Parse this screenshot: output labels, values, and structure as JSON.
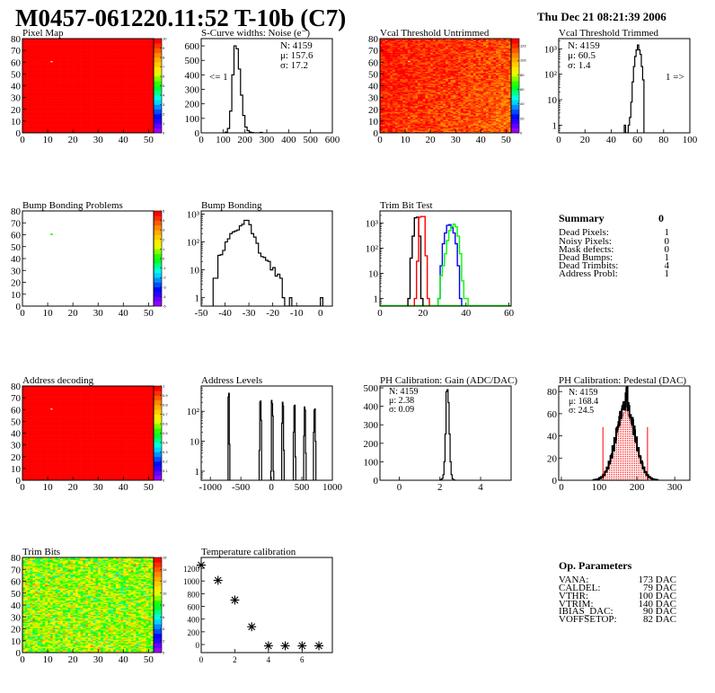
{
  "header": {
    "title": "M0457-061220.11:52 T-10b (C7)",
    "date": "Thu Dec 21 08:21:39 2006"
  },
  "summary": {
    "title": "Summary",
    "total": "0",
    "rows": [
      {
        "label": "Dead Pixels:",
        "value": "1"
      },
      {
        "label": "Noisy Pixels:",
        "value": "0"
      },
      {
        "label": "Mask defects:",
        "value": "0"
      },
      {
        "label": "Dead Bumps:",
        "value": "1"
      },
      {
        "label": "Dead Trimbits:",
        "value": "4"
      },
      {
        "label": "Address Probl:",
        "value": "1"
      }
    ]
  },
  "op_parameters": {
    "title": "Op. Parameters",
    "rows": [
      {
        "label": "VANA:",
        "value": "173 DAC"
      },
      {
        "label": "CALDEL:",
        "value": "79 DAC"
      },
      {
        "label": "VTHR:",
        "value": "100 DAC"
      },
      {
        "label": "VTRIM:",
        "value": "140 DAC"
      },
      {
        "label": "IBIAS_DAC:",
        "value": "90 DAC"
      },
      {
        "label": "VOFFSETOP:",
        "value": "82 DAC"
      }
    ]
  },
  "colors": {
    "histogram": "#000000",
    "trim_series": [
      "#000000",
      "#ff0000",
      "#0000ff",
      "#00ff00"
    ],
    "fit": "#ff0000"
  },
  "chart_data": [
    {
      "id": "pixel-map",
      "type": "heatmap",
      "title": "Pixel Map",
      "xlim": [
        0,
        52
      ],
      "ylim": [
        0,
        80
      ],
      "xticks": [
        0,
        10,
        20,
        30,
        40,
        50
      ],
      "yticks": [
        0,
        10,
        20,
        30,
        40,
        50,
        60,
        70,
        80
      ],
      "zlim": [
        0,
        10
      ],
      "zticks": [
        0,
        1,
        2,
        3,
        4,
        5,
        6,
        7,
        8,
        9,
        10
      ],
      "fill_value": 10,
      "missing_cells": [
        [
          11,
          60
        ]
      ]
    },
    {
      "id": "noise",
      "type": "bar",
      "title": "S-Curve widths: Noise (e⁻)",
      "xlim": [
        0,
        600
      ],
      "ylim": [
        0,
        650
      ],
      "xticks": [
        0,
        100,
        200,
        300,
        400,
        500,
        600
      ],
      "yticks": [
        0,
        100,
        200,
        300,
        400,
        500,
        600
      ],
      "x0": 100,
      "bin_width": 10,
      "counts": [
        0,
        5,
        30,
        150,
        400,
        600,
        580,
        440,
        260,
        120,
        40,
        15,
        5,
        2,
        0,
        0,
        0,
        3
      ],
      "stats": [
        "N: 4159",
        "μ: 157.6",
        "σ: 17.2"
      ],
      "annotation": "<= 1"
    },
    {
      "id": "vcal-untrimmed",
      "type": "heatmap",
      "title": "Vcal Threshold Untrimmed",
      "xlim": [
        0,
        52
      ],
      "ylim": [
        0,
        80
      ],
      "xticks": [
        0,
        10,
        20,
        30,
        40,
        50
      ],
      "yticks": [
        0,
        10,
        20,
        30,
        40,
        50,
        60,
        70,
        80
      ],
      "zlim": [
        0,
        130
      ],
      "zticks": [
        0,
        20,
        40,
        60,
        80,
        100,
        120
      ],
      "missing_cells": [
        [
          11,
          60
        ]
      ]
    },
    {
      "id": "vcal-trimmed",
      "type": "bar",
      "title": "Vcal Threshold Trimmed",
      "log_y": true,
      "xlim": [
        0,
        100
      ],
      "ylim": [
        0.5,
        2500
      ],
      "xticks": [
        0,
        20,
        40,
        60,
        80,
        100
      ],
      "yticks": [
        1,
        10,
        100,
        1000
      ],
      "ytick_labels": [
        "1",
        "10",
        "10²",
        "10³"
      ],
      "x0": 50,
      "bin_width": 1,
      "counts": [
        1,
        0,
        0,
        1,
        2,
        8,
        50,
        200,
        500,
        900,
        1400,
        900,
        600,
        200,
        60
      ],
      "stats": [
        "N: 4159",
        "μ: 60.5",
        "σ:  1.4"
      ],
      "annotation": "1 =>"
    },
    {
      "id": "bump-map",
      "type": "heatmap",
      "title": "Bump Bonding Problems",
      "xlim": [
        0,
        52
      ],
      "ylim": [
        0,
        80
      ],
      "xticks": [
        0,
        10,
        20,
        30,
        40,
        50
      ],
      "yticks": [
        0,
        10,
        20,
        30,
        40,
        50,
        60,
        70,
        80
      ],
      "zlim": [
        -5,
        5
      ],
      "zticks": [
        -5,
        -4,
        -3,
        -2,
        -1,
        0,
        1,
        2,
        3,
        4,
        5
      ],
      "cells": [
        [
          11,
          60,
          0
        ]
      ]
    },
    {
      "id": "bump-bonding",
      "type": "bar",
      "title": "Bump Bonding",
      "log_y": true,
      "xlim": [
        -50,
        5
      ],
      "ylim": [
        0.5,
        1300
      ],
      "xticks": [
        -50,
        -40,
        -30,
        -20,
        -10,
        0
      ],
      "yticks": [
        1,
        10,
        100,
        1000
      ],
      "ytick_labels": [
        "1",
        "10",
        "10²",
        "10³"
      ],
      "x0": -45,
      "bin_width": 1,
      "counts": [
        5,
        5,
        33,
        35,
        50,
        100,
        130,
        200,
        230,
        250,
        270,
        380,
        430,
        600,
        600,
        420,
        200,
        150,
        90,
        40,
        30,
        28,
        22,
        20,
        10,
        12,
        6,
        7,
        5,
        1,
        0,
        0,
        1,
        0,
        0,
        0,
        0,
        0,
        0,
        0,
        0,
        0,
        0,
        0,
        0,
        1
      ]
    },
    {
      "id": "trim-bit-test",
      "type": "bar",
      "title": "Trim Bit Test",
      "log_y": true,
      "xlim": [
        0,
        61
      ],
      "ylim": [
        0.5,
        3000
      ],
      "xticks": [
        0,
        20,
        40,
        60
      ],
      "yticks": [
        1,
        10,
        100,
        1000
      ],
      "ytick_labels": [
        "1",
        "10",
        "10²",
        "10³"
      ],
      "series": [
        {
          "x0": 13,
          "bin_width": 1,
          "counts": [
            1,
            40,
            300,
            1600,
            1700,
            300,
            1
          ]
        },
        {
          "x0": 16,
          "bin_width": 1,
          "counts": [
            1,
            30,
            1700,
            1800,
            1800,
            50,
            1
          ]
        },
        {
          "x0": 27,
          "bin_width": 1,
          "counts": [
            1,
            20,
            150,
            400,
            800,
            850,
            650,
            400,
            150,
            20,
            1
          ]
        },
        {
          "x0": 27,
          "bin_width": 1,
          "counts": [
            1,
            8,
            20,
            60,
            200,
            500,
            700,
            900,
            700,
            300,
            60,
            5,
            1,
            1
          ]
        }
      ]
    },
    {
      "id": "address-decoding",
      "type": "heatmap",
      "title": "Address decoding",
      "xlim": [
        0,
        52
      ],
      "ylim": [
        0,
        80
      ],
      "xticks": [
        0,
        10,
        20,
        30,
        40,
        50
      ],
      "yticks": [
        0,
        10,
        20,
        30,
        40,
        50,
        60,
        70,
        80
      ],
      "zlim": [
        0,
        1
      ],
      "zticks": [
        0,
        0.1,
        0.2,
        0.3,
        0.4,
        0.5,
        0.6,
        0.7,
        0.8,
        0.9,
        1
      ],
      "fill_value": 1,
      "missing_cells": [
        [
          11,
          60
        ]
      ]
    },
    {
      "id": "address-levels",
      "type": "bar",
      "title": "Address Levels",
      "log_y": true,
      "xlim": [
        -1150,
        1000
      ],
      "ylim": [
        0.5,
        700
      ],
      "xticks": [
        -1000,
        -500,
        0,
        500,
        1000
      ],
      "yticks": [
        1,
        10,
        100
      ],
      "ytick_labels": [
        "1",
        "10",
        "10²"
      ],
      "peaks": [
        {
          "x0": -710,
          "bin_width": 10,
          "counts": [
            300,
            400,
            8
          ]
        },
        {
          "x0": -200,
          "bin_width": 10,
          "counts": [
            5,
            200,
            220,
            50
          ]
        },
        {
          "x0": -10,
          "bin_width": 10,
          "counts": [
            1,
            230,
            180,
            70,
            1
          ]
        },
        {
          "x0": 170,
          "bin_width": 10,
          "counts": [
            40,
            200,
            150,
            5
          ]
        },
        {
          "x0": 360,
          "bin_width": 10,
          "counts": [
            20,
            150,
            160,
            3
          ]
        },
        {
          "x0": 530,
          "bin_width": 10,
          "counts": [
            15,
            140,
            110,
            4
          ]
        },
        {
          "x0": 690,
          "bin_width": 10,
          "counts": [
            20,
            110,
            120,
            10
          ]
        }
      ]
    },
    {
      "id": "gain",
      "type": "bar",
      "title": "PH Calibration: Gain (ADC/DAC)",
      "xlim": [
        -0.95,
        5.5
      ],
      "ylim": [
        0,
        510
      ],
      "xticks": [
        0,
        2,
        4
      ],
      "yticks": [
        0,
        100,
        200,
        300,
        400,
        500
      ],
      "x0": 2.0,
      "bin_width": 0.05,
      "counts": [
        2,
        5,
        10,
        30,
        100,
        250,
        480,
        490,
        420,
        250,
        100,
        30,
        8,
        3,
        1
      ],
      "stats": [
        "N: 4159",
        "μ: 2.38",
        "σ: 0.09"
      ]
    },
    {
      "id": "pedestal",
      "type": "bar",
      "title": "PH Calibration: Pedestal (DAC)",
      "xlim": [
        -7,
        340
      ],
      "ylim": [
        0,
        85
      ],
      "xticks": [
        0,
        100,
        200,
        300
      ],
      "yticks": [
        0,
        20,
        40,
        60,
        80
      ],
      "x0": 85,
      "bin_width": 5,
      "counts": [
        0.3,
        0.6,
        1,
        1.8,
        3,
        4.8,
        7.5,
        11,
        16,
        22,
        29,
        37,
        45,
        53,
        60,
        65,
        68,
        78,
        65,
        60,
        53,
        45,
        37,
        29,
        22,
        16,
        11,
        7.5,
        4.8,
        3,
        1.8,
        1,
        0.6,
        0.3
      ],
      "fit_range": [
        110,
        228
      ],
      "fit_line_height": 48,
      "stats": [
        "N: 4159",
        "μ: 168.4",
        "σ: 24.5"
      ]
    },
    {
      "id": "trim-bits",
      "type": "heatmap",
      "title": "Trim Bits",
      "xlim": [
        0,
        52
      ],
      "ylim": [
        0,
        80
      ],
      "xticks": [
        0,
        10,
        20,
        30,
        40,
        50
      ],
      "yticks": [
        0,
        10,
        20,
        30,
        40,
        50,
        60,
        70,
        80
      ],
      "zlim": [
        0,
        16
      ],
      "zticks": [
        0,
        2,
        4,
        6,
        8,
        10,
        12,
        14,
        16
      ]
    },
    {
      "id": "temperature-calibration",
      "type": "scatter",
      "title": "Temperature calibration",
      "xlim": [
        0,
        7.8
      ],
      "ylim": [
        -127,
        1370
      ],
      "xticks": [
        0,
        2,
        4,
        6
      ],
      "yticks": [
        0,
        200,
        400,
        600,
        800,
        1000,
        1200
      ],
      "x": [
        0,
        1,
        2,
        3,
        4,
        5,
        6,
        7
      ],
      "y": [
        1250,
        1010,
        700,
        280,
        -20,
        -20,
        -20,
        -20
      ]
    }
  ]
}
